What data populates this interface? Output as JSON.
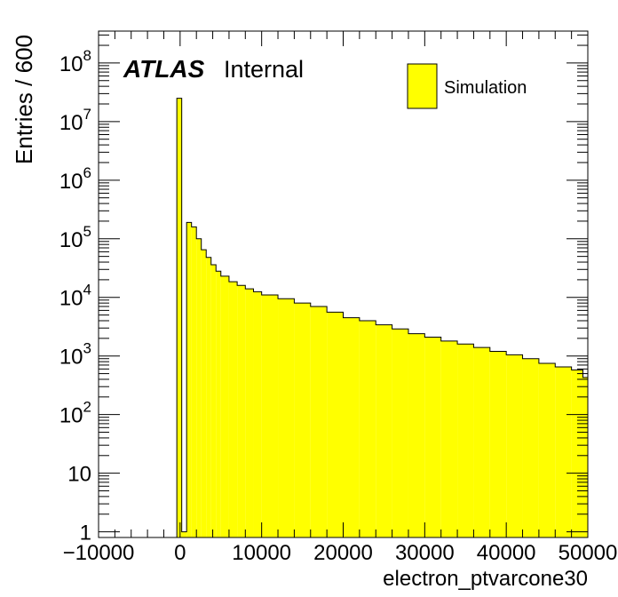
{
  "chart_data": {
    "type": "bar",
    "style": "histogram",
    "ylabel": "Entries / 600",
    "xlabel": "electron_ptvarcone30",
    "y_scale": "log",
    "xlim": [
      -10000,
      50000
    ],
    "ylim": [
      0.8,
      350000000
    ],
    "bin_width": 600,
    "x_ticks": [
      -10000,
      0,
      10000,
      20000,
      30000,
      40000,
      50000
    ],
    "x_tick_labels": [
      "−10000",
      "0",
      "10000",
      "20000",
      "30000",
      "40000",
      "50000"
    ],
    "y_ticks": [
      {
        "value": 1,
        "base": "1",
        "exp": ""
      },
      {
        "value": 10,
        "base": "10",
        "exp": ""
      },
      {
        "value": 100,
        "base": "10",
        "exp": "2"
      },
      {
        "value": 1000,
        "base": "10",
        "exp": "3"
      },
      {
        "value": 10000,
        "base": "10",
        "exp": "4"
      },
      {
        "value": 100000,
        "base": "10",
        "exp": "5"
      },
      {
        "value": 1000000,
        "base": "10",
        "exp": "6"
      },
      {
        "value": 10000000,
        "base": "10",
        "exp": "7"
      },
      {
        "value": 100000000,
        "base": "10",
        "exp": "8"
      }
    ],
    "fill_color": "#ffff00",
    "edge_color": "#000000",
    "series": [
      {
        "name": "Simulation",
        "bins": [
          {
            "x": -400,
            "y": 25000000
          },
          {
            "x": 200,
            "y": 1
          },
          {
            "x": 800,
            "y": 190000
          },
          {
            "x": 1400,
            "y": 160000
          },
          {
            "x": 2000,
            "y": 100000
          },
          {
            "x": 2600,
            "y": 65000
          },
          {
            "x": 3200,
            "y": 48000
          },
          {
            "x": 3800,
            "y": 36000
          },
          {
            "x": 4400,
            "y": 28000
          },
          {
            "x": 5000,
            "y": 23000
          },
          {
            "x": 6000,
            "y": 18500
          },
          {
            "x": 7000,
            "y": 16000
          },
          {
            "x": 8000,
            "y": 14000
          },
          {
            "x": 9000,
            "y": 12500
          },
          {
            "x": 10000,
            "y": 11000
          },
          {
            "x": 12000,
            "y": 9500
          },
          {
            "x": 14000,
            "y": 8000
          },
          {
            "x": 16000,
            "y": 7000
          },
          {
            "x": 18000,
            "y": 5600
          },
          {
            "x": 20000,
            "y": 4500
          },
          {
            "x": 22000,
            "y": 4000
          },
          {
            "x": 24000,
            "y": 3400
          },
          {
            "x": 26000,
            "y": 2900
          },
          {
            "x": 28000,
            "y": 2400
          },
          {
            "x": 30000,
            "y": 2100
          },
          {
            "x": 32000,
            "y": 1800
          },
          {
            "x": 34000,
            "y": 1600
          },
          {
            "x": 36000,
            "y": 1400
          },
          {
            "x": 38000,
            "y": 1200
          },
          {
            "x": 40000,
            "y": 1050
          },
          {
            "x": 42000,
            "y": 900
          },
          {
            "x": 44000,
            "y": 750
          },
          {
            "x": 46000,
            "y": 650
          },
          {
            "x": 48000,
            "y": 580
          },
          {
            "x": 49400,
            "y": 430
          }
        ]
      }
    ],
    "annotations": [
      {
        "text": "ATLAS",
        "style": "bold-italic"
      },
      {
        "text": "Internal",
        "style": "normal"
      }
    ],
    "legend": {
      "placement": "top-right",
      "entries": [
        "Simulation"
      ]
    }
  }
}
